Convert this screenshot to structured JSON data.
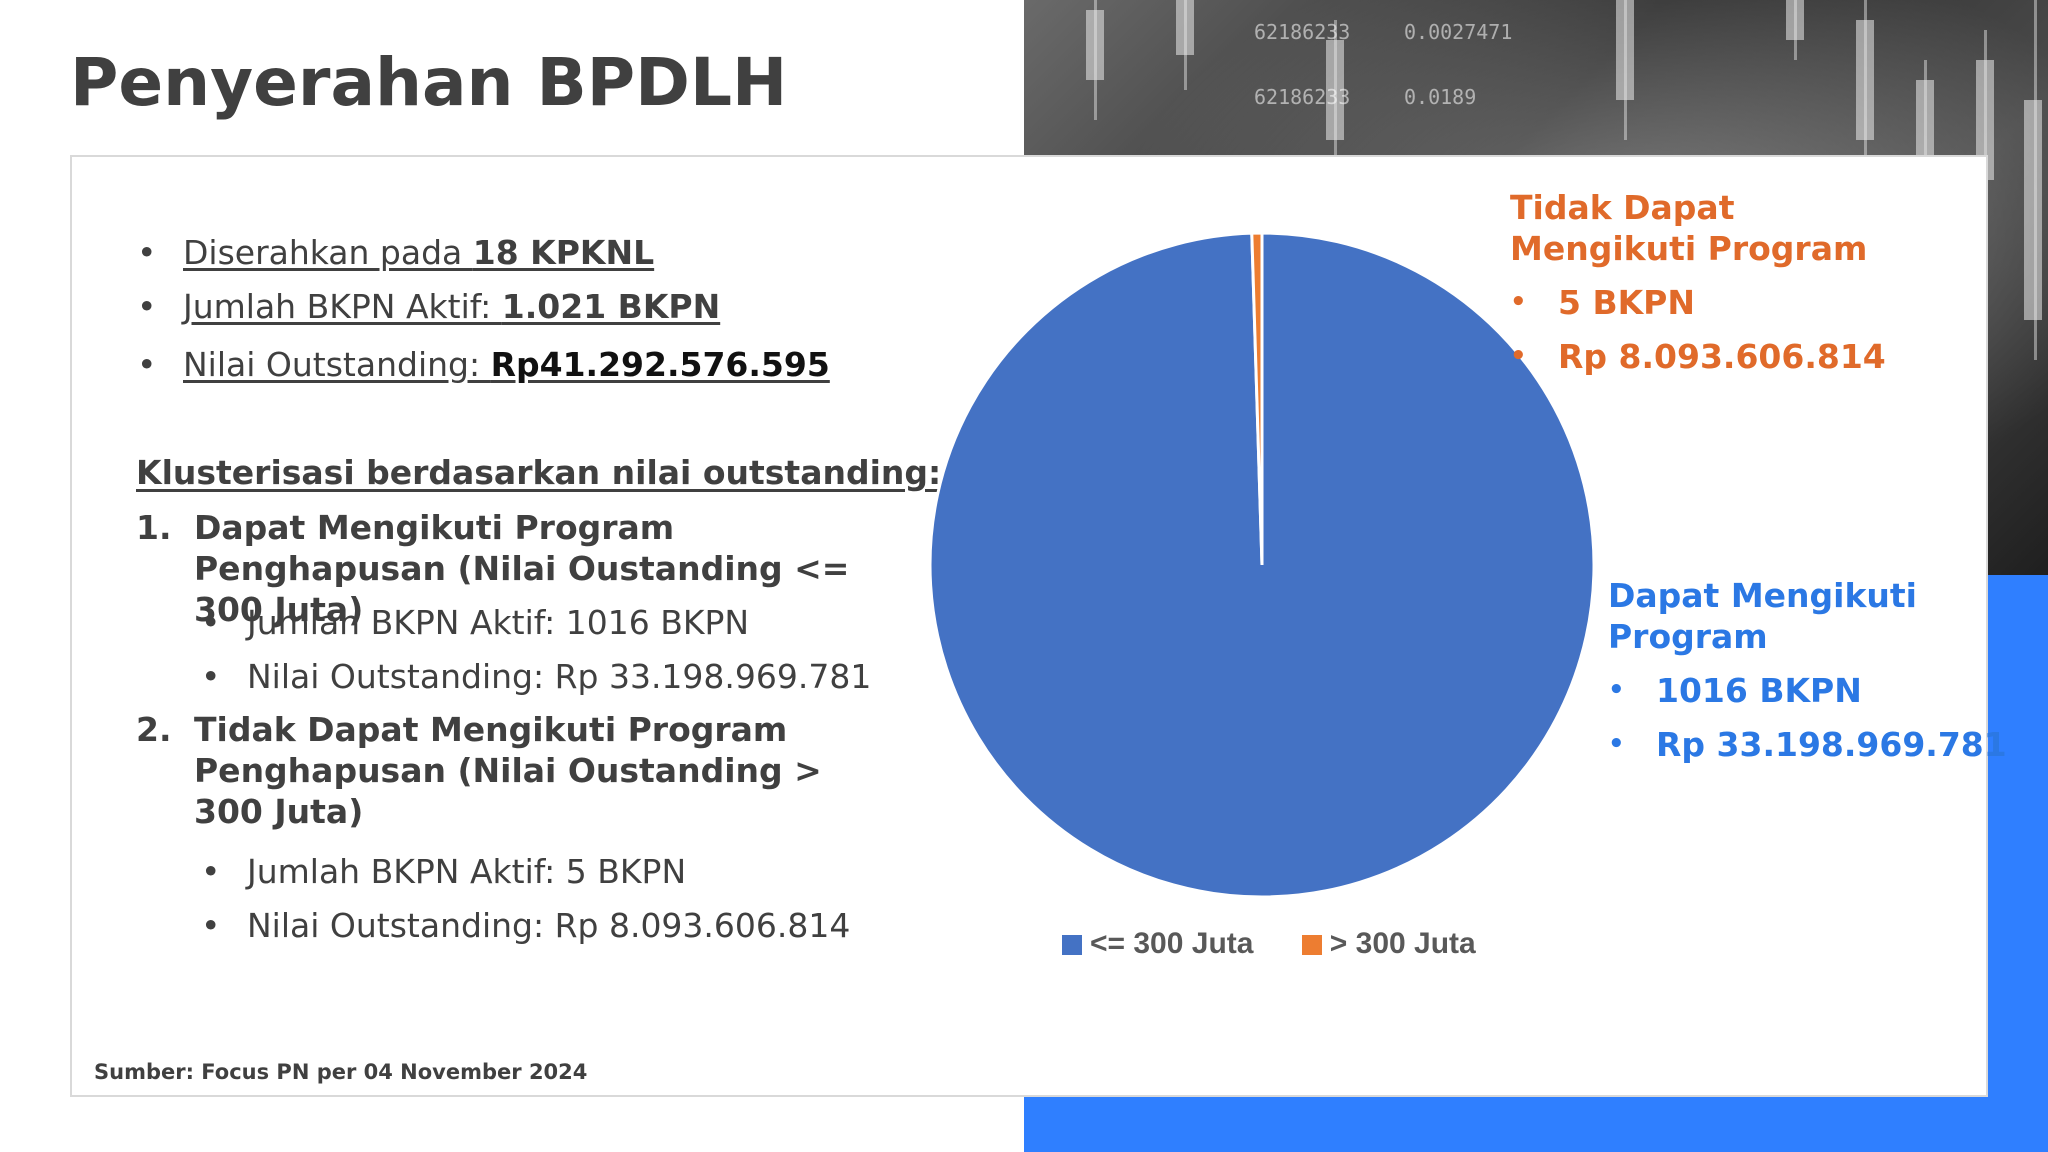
{
  "title": "Penyerahan BPDLH",
  "summary": {
    "item1_prefix": "Diserahkan pada ",
    "item1_value": "18 KPKNL ",
    "item2_prefix": "Jumlah BKPN Aktif: ",
    "item2_value": "1.021 BKPN ",
    "item3_prefix": "Nilai Outstanding: ",
    "item3_value": "Rp41.292.576.595"
  },
  "cluster": {
    "heading": "Klusterisasi berdasarkan nilai outstanding:",
    "groups": [
      {
        "number": "1.",
        "title": "Dapat Mengikuti Program Penghapusan (Nilai Oustanding <= 300 Juta)",
        "bkpn": "Jumlah BKPN Aktif: 1016 BKPN",
        "outstanding": "Nilai Outstanding: Rp 33.198.969.781"
      },
      {
        "number": "2.",
        "title": "Tidak Dapat Mengikuti Program Penghapusan (Nilai Oustanding > 300 Juta)",
        "bkpn": "Jumlah BKPN Aktif: 5 BKPN",
        "outstanding": "Nilai Outstanding: Rp 8.093.606.814"
      }
    ]
  },
  "source": "Sumber: Focus PN per 04 November 2024",
  "callouts": {
    "not_eligible": {
      "title": "Tidak Dapat Mengikuti Program",
      "count": "5 BKPN",
      "value": "Rp 8.093.606.814",
      "color": "#e06a2a"
    },
    "eligible": {
      "title": "Dapat Mengikuti Program",
      "count": "1016 BKPN",
      "value": "Rp 33.198.969.781",
      "color": "#2b78e4"
    }
  },
  "chart_data": {
    "type": "pie",
    "categories": [
      "<= 300 Juta",
      "> 300 Juta"
    ],
    "values": [
      1016,
      5
    ],
    "colors": [
      "#4472c4",
      "#ed7d31"
    ],
    "legend_position": "bottom",
    "title": ""
  }
}
